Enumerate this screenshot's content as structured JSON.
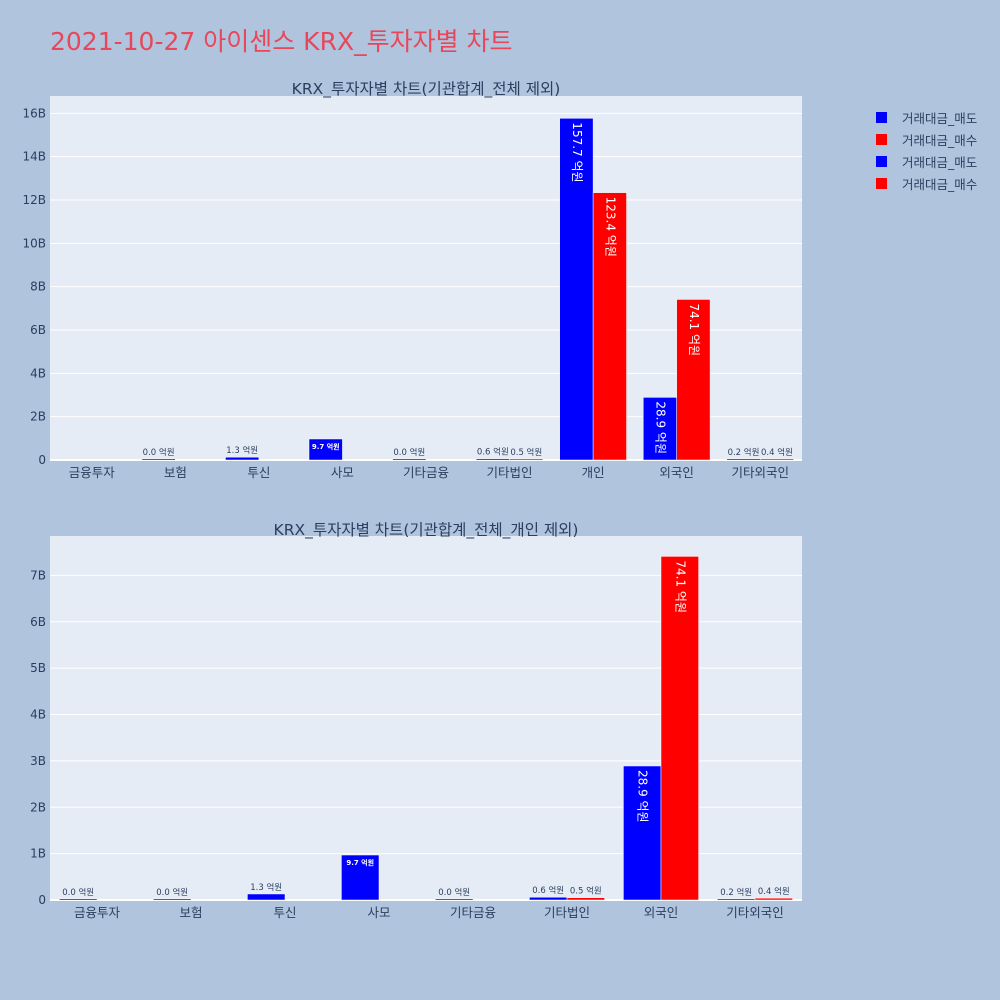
{
  "page_title": "2021-10-27 아이센스 KRX_투자자별 차트",
  "colors": {
    "sell": "#0000ff",
    "buy": "#ff0000",
    "plot_bg": "#e5ecf6",
    "page_bg": "#b0c4de"
  },
  "legend": [
    {
      "label": "거래대금_매도",
      "color": "#0000ff"
    },
    {
      "label": "거래대금_매수",
      "color": "#ff0000"
    },
    {
      "label": "거래대금_매도",
      "color": "#0000ff"
    },
    {
      "label": "거래대금_매수",
      "color": "#ff0000"
    }
  ],
  "chart_data": [
    {
      "type": "bar",
      "title": "KRX_투자자별 차트(기관합계_전체 제외)",
      "categories": [
        "금융투자",
        "보험",
        "투신",
        "사모",
        "기타금융",
        "기타법인",
        "개인",
        "외국인",
        "기타외국인"
      ],
      "ylim": [
        0,
        16.8
      ],
      "yticks": [
        0,
        2,
        4,
        6,
        8,
        10,
        12,
        14,
        16
      ],
      "ytick_labels": [
        "0",
        "2B",
        "4B",
        "6B",
        "8B",
        "10B",
        "12B",
        "14B",
        "16B"
      ],
      "series": [
        {
          "name": "거래대금_매도",
          "color": "#0000ff",
          "values": [
            null,
            0.0,
            0.13,
            0.97,
            0.0,
            0.06,
            15.77,
            2.89,
            0.02
          ],
          "labels": [
            null,
            "0.0 억원",
            "1.3 억원",
            "9.7 억원",
            "0.0 억원",
            "0.6 억원",
            "157.7 억원",
            "28.9 억원",
            "0.2 억원"
          ]
        },
        {
          "name": "거래대금_매수",
          "color": "#ff0000",
          "values": [
            null,
            null,
            null,
            null,
            null,
            0.05,
            12.34,
            7.41,
            0.04
          ],
          "labels": [
            null,
            null,
            null,
            null,
            null,
            "0.5 억원",
            "123.4 억원",
            "74.1 억원",
            "0.4 억원"
          ]
        }
      ]
    },
    {
      "type": "bar",
      "title": "KRX_투자자별 차트(기관합계_전체_개인 제외)",
      "categories": [
        "금융투자",
        "보험",
        "투신",
        "사모",
        "기타금융",
        "기타법인",
        "외국인",
        "기타외국인"
      ],
      "ylim": [
        0,
        7.85
      ],
      "yticks": [
        0,
        1,
        2,
        3,
        4,
        5,
        6,
        7
      ],
      "ytick_labels": [
        "0",
        "1B",
        "2B",
        "3B",
        "4B",
        "5B",
        "6B",
        "7B"
      ],
      "series": [
        {
          "name": "거래대금_매도",
          "color": "#0000ff",
          "values": [
            0.0,
            0.0,
            0.13,
            0.97,
            0.0,
            0.06,
            2.89,
            0.02
          ],
          "labels": [
            "0.0 억원",
            "0.0 억원",
            "1.3 억원",
            "9.7 억원",
            "0.0 억원",
            "0.6 억원",
            "28.9 억원",
            "0.2 억원"
          ]
        },
        {
          "name": "거래대금_매수",
          "color": "#ff0000",
          "values": [
            null,
            null,
            null,
            null,
            null,
            0.05,
            7.41,
            0.04
          ],
          "labels": [
            null,
            null,
            null,
            null,
            null,
            "0.5 억원",
            "74.1 억원",
            "0.4 억원"
          ]
        }
      ]
    }
  ]
}
